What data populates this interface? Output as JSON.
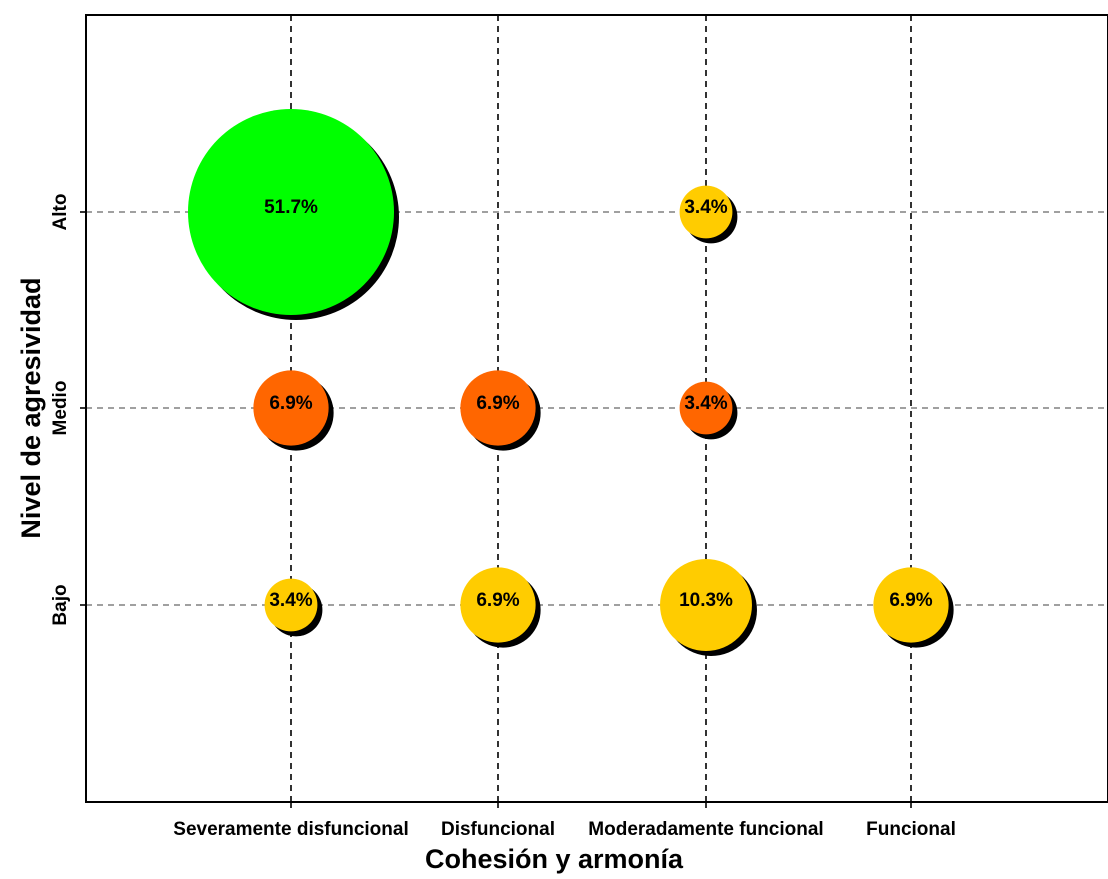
{
  "chart_data": {
    "type": "scatter",
    "subtype": "bubble",
    "title": "",
    "xlabel": "Cohesión y armonía",
    "ylabel": "Nivel de agresividad",
    "x_categories": [
      "Severamente disfuncional",
      "Disfuncional",
      "Moderadamente funcional",
      "Funcional"
    ],
    "y_categories": [
      "Bajo",
      "Medio",
      "Alto"
    ],
    "grid": true,
    "legend": "none",
    "points": [
      {
        "x": "Severamente disfuncional",
        "y": "Alto",
        "value": 51.7,
        "label": "51.7%",
        "color": "#00ff00"
      },
      {
        "x": "Moderadamente funcional",
        "y": "Alto",
        "value": 3.4,
        "label": "3.4%",
        "color": "#ffcc00"
      },
      {
        "x": "Severamente disfuncional",
        "y": "Medio",
        "value": 6.9,
        "label": "6.9%",
        "color": "#ff6600"
      },
      {
        "x": "Disfuncional",
        "y": "Medio",
        "value": 6.9,
        "label": "6.9%",
        "color": "#ff6600"
      },
      {
        "x": "Moderadamente funcional",
        "y": "Medio",
        "value": 3.4,
        "label": "3.4%",
        "color": "#ff6600"
      },
      {
        "x": "Severamente disfuncional",
        "y": "Bajo",
        "value": 3.4,
        "label": "3.4%",
        "color": "#ffcc00"
      },
      {
        "x": "Disfuncional",
        "y": "Bajo",
        "value": 6.9,
        "label": "6.9%",
        "color": "#ffcc00"
      },
      {
        "x": "Moderadamente funcional",
        "y": "Bajo",
        "value": 10.3,
        "label": "10.3%",
        "color": "#ffcc00"
      },
      {
        "x": "Funcional",
        "y": "Bajo",
        "value": 6.9,
        "label": "6.9%",
        "color": "#ffcc00"
      }
    ]
  }
}
